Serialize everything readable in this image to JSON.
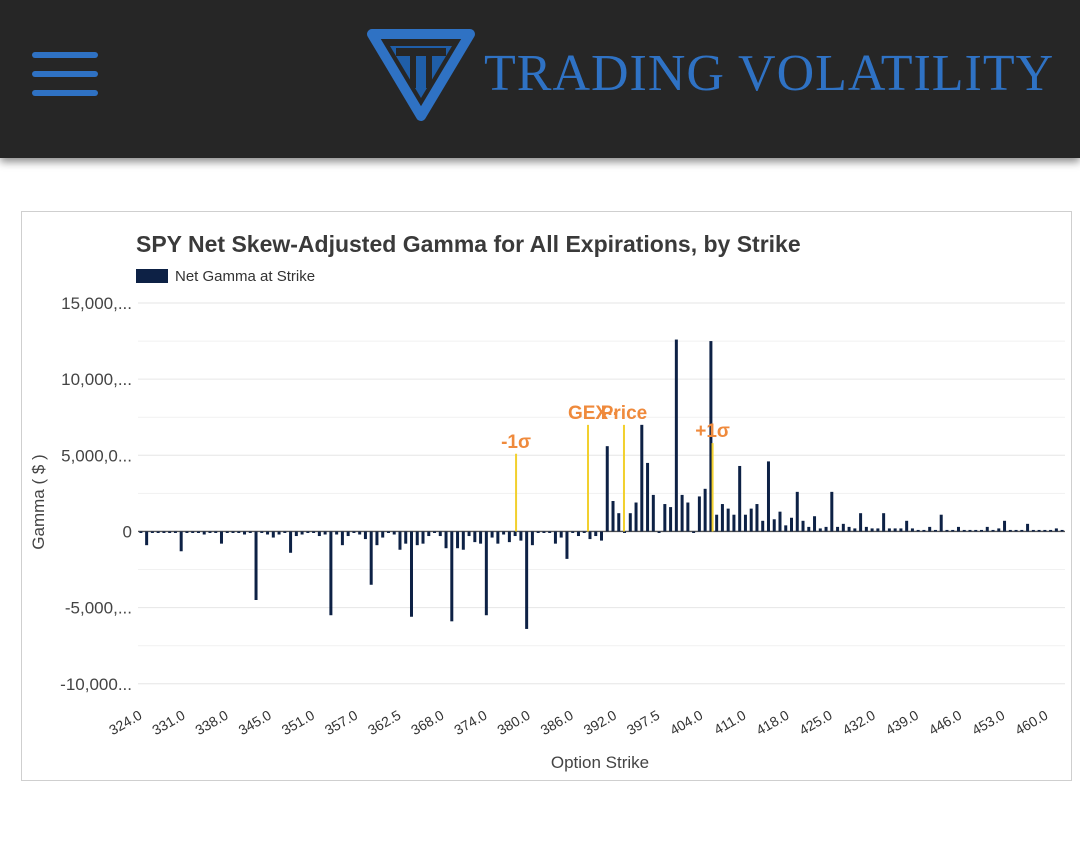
{
  "header": {
    "brand": "TRADING VOLATILITY",
    "menu_icon": "hamburger-menu-icon",
    "logo_icon": "triangle-logo-icon",
    "bg_color": "#262626",
    "accent_color": "#2f72c4"
  },
  "chart_data": {
    "type": "bar",
    "title": "SPY Net Skew-Adjusted Gamma for All Expirations, by Strike",
    "xlabel": "Option Strike",
    "ylabel": "Gamma ( $ )",
    "legend": [
      {
        "label": "Net Gamma at Strike",
        "color": "#0d2145"
      }
    ],
    "legend_position": "top-left",
    "ylim": [
      -11000,
      15000
    ],
    "yticks": [
      {
        "value": 15000,
        "label": "15,000,..."
      },
      {
        "value": 10000,
        "label": "10,000,..."
      },
      {
        "value": 5000,
        "label": "5,000,0..."
      },
      {
        "value": 0,
        "label": "0"
      },
      {
        "value": -5000,
        "label": "-5,000,..."
      },
      {
        "value": -10000,
        "label": "-10,000..."
      }
    ],
    "xticks": [
      "324.0",
      "331.0",
      "338.0",
      "345.0",
      "351.0",
      "357.0",
      "362.5",
      "368.0",
      "374.0",
      "380.0",
      "386.0",
      "392.0",
      "397.5",
      "404.0",
      "411.0",
      "418.0",
      "425.0",
      "432.0",
      "439.0",
      "446.0",
      "453.0",
      "460.0"
    ],
    "series": [
      {
        "name": "Net Gamma at Strike",
        "color": "#0d2145",
        "values": [
          -100,
          -900,
          -100,
          -100,
          -100,
          -100,
          -100,
          -1300,
          -100,
          -100,
          -100,
          -200,
          -100,
          -100,
          -800,
          -100,
          -100,
          -100,
          -200,
          -100,
          -4500,
          -100,
          -200,
          -400,
          -200,
          -100,
          -1400,
          -300,
          -200,
          -100,
          -100,
          -300,
          -200,
          -5500,
          -200,
          -900,
          -300,
          -100,
          -200,
          -500,
          -3500,
          -900,
          -400,
          -100,
          -200,
          -1200,
          -800,
          -5600,
          -900,
          -800,
          -300,
          -100,
          -300,
          -1100,
          -5900,
          -1100,
          -1200,
          -300,
          -700,
          -800,
          -5500,
          -400,
          -800,
          -200,
          -700,
          -300,
          -600,
          -6400,
          -900,
          -100,
          -100,
          -100,
          -800,
          -400,
          -1800,
          -100,
          -300,
          -100,
          -500,
          -300,
          -600,
          5600,
          2000,
          1200,
          -100,
          1200,
          1900,
          7000,
          4500,
          2400,
          -100,
          1800,
          1600,
          12600,
          2400,
          1900,
          -100,
          2300,
          2800,
          12500,
          1100,
          1800,
          1500,
          1100,
          4300,
          1100,
          1500,
          1800,
          700,
          4600,
          800,
          1300,
          400,
          900,
          2600,
          700,
          300,
          1000,
          200,
          300,
          2600,
          300,
          500,
          300,
          200,
          1200,
          300,
          200,
          200,
          1200,
          200,
          200,
          200,
          700,
          200,
          100,
          100,
          300,
          100,
          1100,
          100,
          100,
          300,
          100,
          100,
          100,
          100,
          300,
          100,
          200,
          700,
          100,
          100,
          100,
          500,
          100,
          100,
          100,
          100,
          200,
          100
        ]
      }
    ],
    "annotations": [
      {
        "label": "-1σ",
        "x": 380.0,
        "value": 5100,
        "color": "#ef8a3c",
        "line_color": "#f2d02e"
      },
      {
        "label": "GEX",
        "x": 390.8,
        "value": 7000,
        "color": "#ef8a3c",
        "line_color": "#f2d02e"
      },
      {
        "label": "Price",
        "x": 396.2,
        "value": 7000,
        "color": "#ef8a3c",
        "line_color": "#f2d02e"
      },
      {
        "label": "+1σ",
        "x": 409.5,
        "value": 5800,
        "color": "#ef8a3c",
        "line_color": "#f2d02e"
      }
    ],
    "annotation_marker": "...",
    "grid": true
  }
}
